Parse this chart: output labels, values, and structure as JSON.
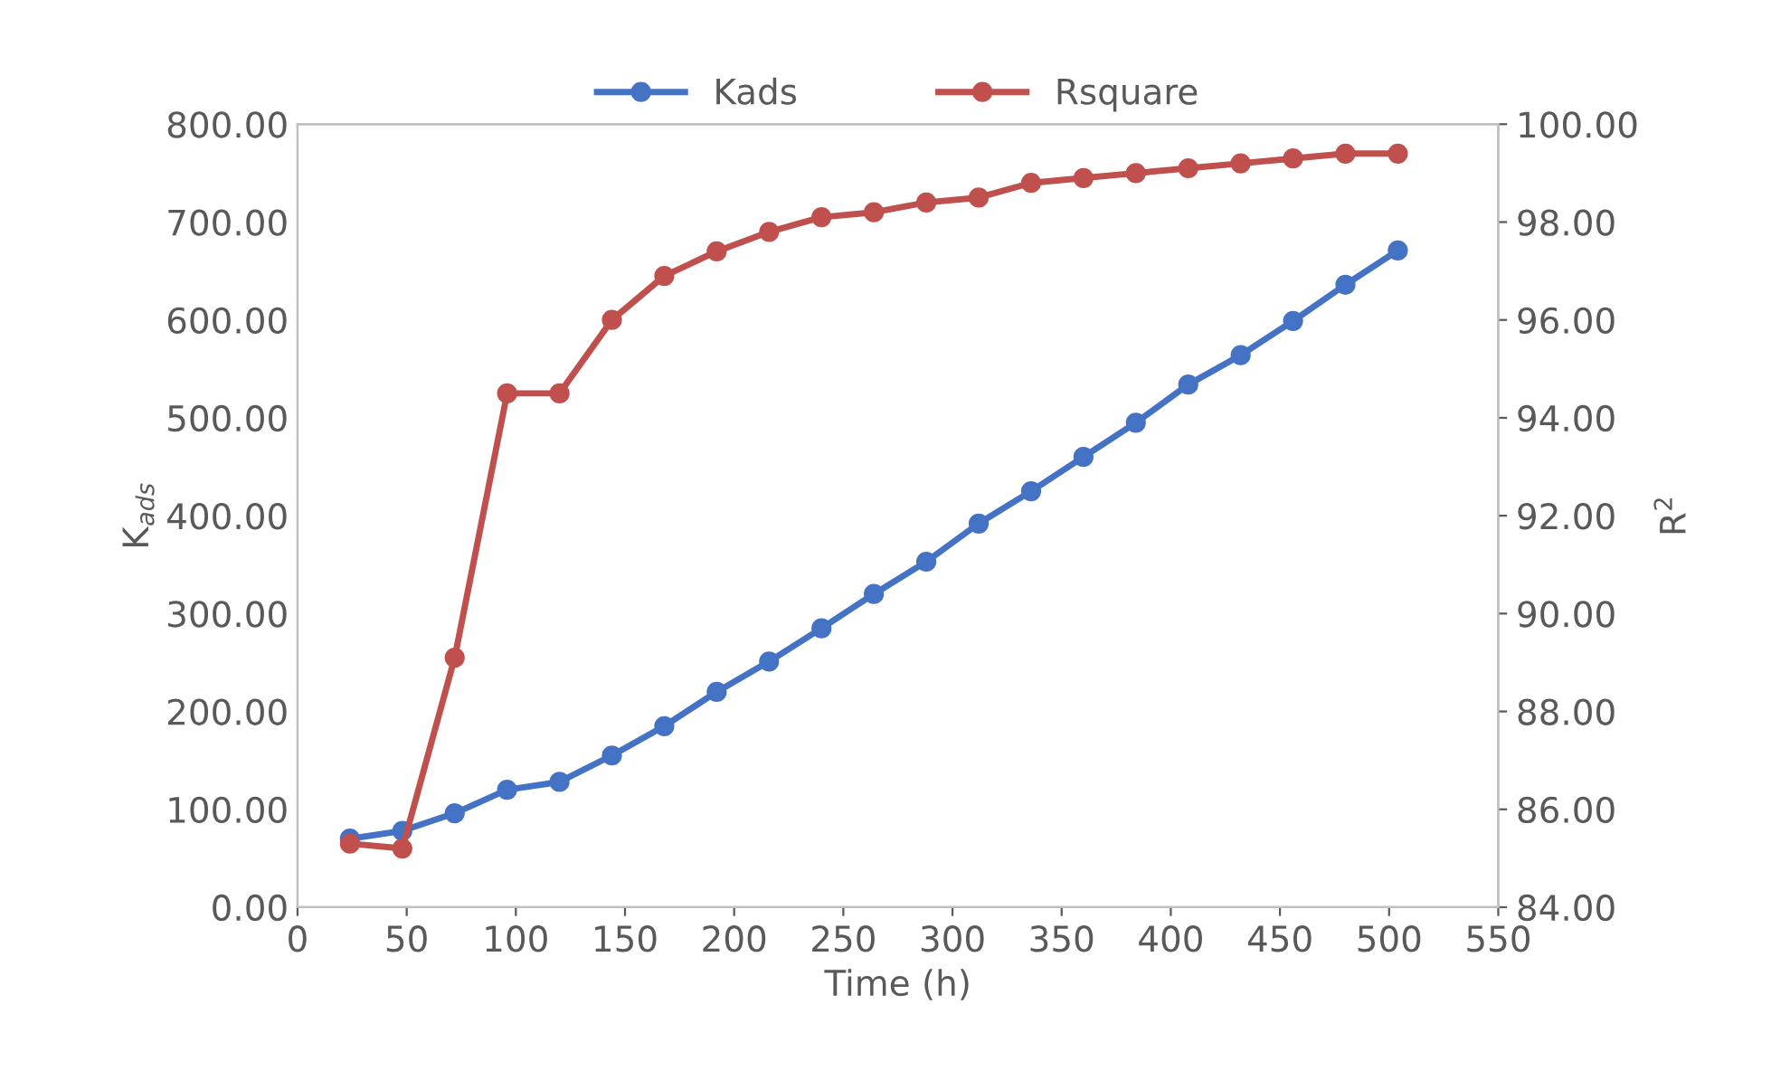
{
  "chart_data": {
    "type": "line",
    "xlabel": "Time (h)",
    "ylabel": "K$_{ads}$",
    "y2label": "R$^{2}$",
    "x": [
      24,
      48,
      72,
      96,
      120,
      144,
      168,
      192,
      216,
      240,
      264,
      288,
      312,
      336,
      360,
      384,
      408,
      432,
      456,
      480,
      504
    ],
    "series": [
      {
        "name": "Kads",
        "color": "#4472c4",
        "values": [
          70,
          78,
          96,
          120,
          128,
          155,
          185,
          220,
          251,
          285,
          320,
          353,
          392,
          425,
          460,
          495,
          534,
          564,
          599,
          636,
          671
        ]
      },
      {
        "name": "Rsquare",
        "color": "#c0504d",
        "axis": "y2",
        "values": [
          85.3,
          85.2,
          89.1,
          94.5,
          94.5,
          96.0,
          96.9,
          97.4,
          97.8,
          98.1,
          98.2,
          98.4,
          98.5,
          98.8,
          98.9,
          99.0,
          99.1,
          99.2,
          99.3,
          99.4,
          99.4
        ]
      }
    ],
    "xlim": [
      0,
      550
    ],
    "xticks": [
      0,
      50,
      100,
      150,
      200,
      250,
      300,
      350,
      400,
      450,
      500,
      550
    ],
    "ylim": [
      0,
      800
    ],
    "yticks": [
      {
        "value": 0,
        "label": "0.00"
      },
      {
        "value": 100,
        "label": "100.00"
      },
      {
        "value": 200,
        "label": "200.00"
      },
      {
        "value": 300,
        "label": "300.00"
      },
      {
        "value": 400,
        "label": "400.00"
      },
      {
        "value": 500,
        "label": "500.00"
      },
      {
        "value": 600,
        "label": "600.00"
      },
      {
        "value": 700,
        "label": "700.00"
      },
      {
        "value": 800,
        "label": "800.00"
      }
    ],
    "y2lim": [
      84,
      100
    ],
    "y2ticks": [
      {
        "value": 84,
        "label": "84.00"
      },
      {
        "value": 86,
        "label": "86.00"
      },
      {
        "value": 88,
        "label": "88.00"
      },
      {
        "value": 90,
        "label": "90.00"
      },
      {
        "value": 92,
        "label": "92.00"
      },
      {
        "value": 94,
        "label": "94.00"
      },
      {
        "value": 96,
        "label": "96.00"
      },
      {
        "value": 98,
        "label": "98.00"
      },
      {
        "value": 100,
        "label": "100.00"
      }
    ],
    "grid": false,
    "legend": "top",
    "marker": "circle",
    "line_style": "solid"
  }
}
